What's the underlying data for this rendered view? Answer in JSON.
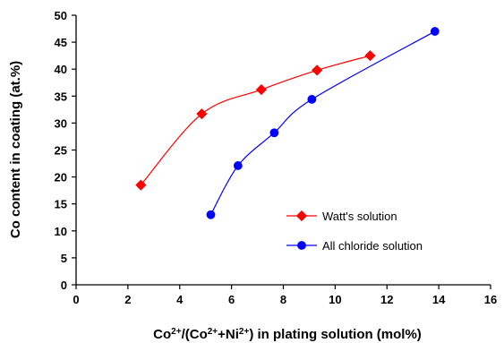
{
  "chart_data": {
    "type": "line",
    "title": "",
    "xlabel": {
      "base": "Co",
      "sup1": "2+",
      "mid1": "/(Co",
      "sup2": "2+",
      "mid2": "+Ni",
      "sup3": "2+",
      "tail": ") in plating solution (mol%)"
    },
    "ylabel": "Co content in coating (at.%)",
    "xlim": [
      0,
      16
    ],
    "ylim": [
      0,
      50
    ],
    "x_ticks": [
      "0",
      "2",
      "4",
      "6",
      "8",
      "10",
      "12",
      "14",
      "16"
    ],
    "y_ticks": [
      "0",
      "5",
      "10",
      "15",
      "20",
      "25",
      "30",
      "35",
      "40",
      "45",
      "50"
    ],
    "grid": false,
    "legend_position": "bottom-right",
    "series": [
      {
        "name": "Watt's solution",
        "color": "#ff0000",
        "marker": "diamond",
        "points": [
          {
            "x": 2.5,
            "y": 18.5
          },
          {
            "x": 4.85,
            "y": 31.7
          },
          {
            "x": 7.15,
            "y": 36.2
          },
          {
            "x": 9.3,
            "y": 39.8
          },
          {
            "x": 11.35,
            "y": 42.5
          }
        ]
      },
      {
        "name": "All chloride solution",
        "color": "#0000ff",
        "marker": "circle",
        "points": [
          {
            "x": 5.2,
            "y": 13.0
          },
          {
            "x": 6.25,
            "y": 22.1
          },
          {
            "x": 7.65,
            "y": 28.2
          },
          {
            "x": 9.1,
            "y": 34.4
          },
          {
            "x": 13.85,
            "y": 47.0
          }
        ]
      }
    ]
  }
}
